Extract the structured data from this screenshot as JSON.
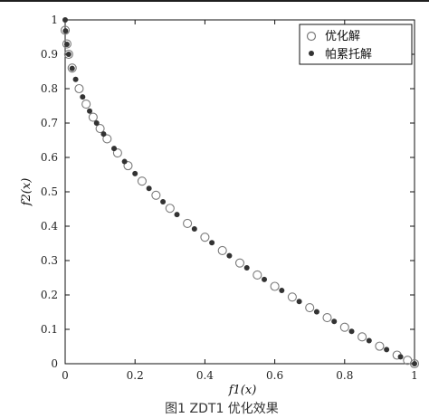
{
  "chart_data": {
    "type": "scatter",
    "title": "",
    "xlabel": "f1(x)",
    "ylabel": "f2(x)",
    "xlim": [
      0,
      1
    ],
    "ylim": [
      0,
      1
    ],
    "x_ticks": [
      "0",
      "0.2",
      "0.4",
      "0.6",
      "0.8",
      "1"
    ],
    "y_ticks": [
      "0",
      "0.1",
      "0.2",
      "0.3",
      "0.4",
      "0.5",
      "0.6",
      "0.7",
      "0.8",
      "0.9",
      "1"
    ],
    "legend_position": "top-right",
    "grid": false,
    "series": [
      {
        "name": "优化解",
        "marker": "open-circle",
        "color": "#7a7a7a",
        "x": [
          0,
          0.005,
          0.01,
          0.02,
          0.04,
          0.06,
          0.08,
          0.1,
          0.12,
          0.15,
          0.18,
          0.22,
          0.26,
          0.3,
          0.35,
          0.4,
          0.45,
          0.5,
          0.55,
          0.6,
          0.65,
          0.7,
          0.75,
          0.8,
          0.85,
          0.9,
          0.95,
          0.98,
          1
        ],
        "y": [
          0.97,
          0.93,
          0.9,
          0.86,
          0.8,
          0.755,
          0.717,
          0.684,
          0.654,
          0.613,
          0.576,
          0.531,
          0.49,
          0.452,
          0.408,
          0.368,
          0.329,
          0.293,
          0.258,
          0.225,
          0.194,
          0.163,
          0.134,
          0.106,
          0.078,
          0.051,
          0.025,
          0.01,
          0
        ]
      },
      {
        "name": "帕累托解",
        "marker": "filled-dot",
        "color": "#333333",
        "x": [
          0,
          0.001,
          0.005,
          0.01,
          0.02,
          0.03,
          0.05,
          0.07,
          0.09,
          0.11,
          0.14,
          0.17,
          0.2,
          0.24,
          0.28,
          0.32,
          0.37,
          0.42,
          0.47,
          0.52,
          0.57,
          0.62,
          0.67,
          0.72,
          0.77,
          0.82,
          0.87,
          0.92,
          0.96,
          1
        ],
        "y": [
          1,
          0.968,
          0.929,
          0.9,
          0.859,
          0.827,
          0.776,
          0.735,
          0.7,
          0.668,
          0.626,
          0.588,
          0.553,
          0.51,
          0.471,
          0.434,
          0.392,
          0.352,
          0.314,
          0.279,
          0.245,
          0.213,
          0.181,
          0.151,
          0.123,
          0.094,
          0.067,
          0.041,
          0.02,
          0
        ]
      }
    ]
  },
  "caption": {
    "text": "图1  ZDT1 优化效果"
  }
}
